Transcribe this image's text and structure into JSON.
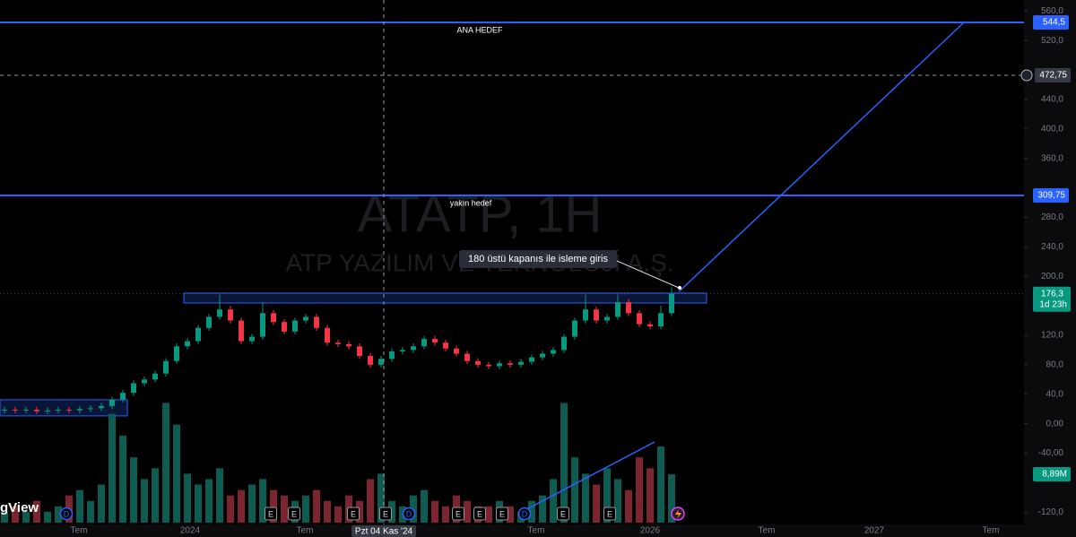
{
  "chart_data": {
    "type": "candlestick",
    "title": "ATATP, 1H",
    "subtitle": "ATP YAZILIM VE TEKNOLOJİ A.Ş.",
    "open": [
      18,
      19,
      18,
      19,
      17,
      18,
      19,
      18,
      20,
      21,
      24,
      33,
      42,
      55,
      60,
      68,
      85,
      105,
      112,
      130,
      145,
      155,
      140,
      112,
      118,
      150,
      138,
      125,
      140,
      145,
      130,
      110,
      108,
      105,
      92,
      80,
      88,
      98,
      100,
      105,
      115,
      110,
      102,
      95,
      85,
      80,
      78,
      82,
      80,
      84,
      90,
      95,
      100,
      118,
      140,
      155,
      140,
      145,
      165,
      150,
      135,
      132,
      150
    ],
    "high": [
      23,
      23,
      23,
      23,
      22,
      23,
      23,
      24,
      25,
      28,
      37,
      46,
      59,
      64,
      72,
      89,
      109,
      116,
      134,
      149,
      175,
      160,
      144,
      122,
      165,
      154,
      142,
      144,
      149,
      149,
      134,
      114,
      112,
      109,
      96,
      92,
      102,
      104,
      109,
      119,
      119,
      114,
      106,
      99,
      89,
      84,
      86,
      86,
      88,
      94,
      99,
      104,
      122,
      144,
      175,
      159,
      149,
      175,
      169,
      154,
      139,
      160,
      185
    ],
    "low": [
      14,
      14,
      14,
      13,
      13,
      14,
      14,
      14,
      16,
      17,
      20,
      29,
      38,
      51,
      56,
      64,
      81,
      101,
      108,
      126,
      141,
      136,
      108,
      108,
      114,
      134,
      121,
      121,
      136,
      126,
      106,
      104,
      101,
      88,
      76,
      76,
      84,
      94,
      96,
      101,
      106,
      98,
      91,
      81,
      76,
      74,
      74,
      76,
      76,
      80,
      86,
      91,
      96,
      114,
      136,
      136,
      136,
      141,
      146,
      131,
      128,
      128,
      146
    ],
    "close": [
      19,
      18,
      19,
      17,
      18,
      19,
      18,
      20,
      21,
      24,
      33,
      42,
      55,
      60,
      68,
      85,
      105,
      112,
      130,
      145,
      155,
      140,
      112,
      118,
      150,
      138,
      125,
      140,
      145,
      130,
      110,
      108,
      105,
      92,
      80,
      88,
      98,
      100,
      105,
      115,
      110,
      102,
      95,
      85,
      80,
      78,
      82,
      80,
      84,
      90,
      95,
      100,
      118,
      140,
      155,
      140,
      145,
      165,
      150,
      135,
      132,
      150,
      176.3
    ],
    "volume": [
      2,
      3,
      2,
      4,
      2,
      3,
      5,
      6,
      4,
      7,
      20,
      16,
      12,
      8,
      10,
      22,
      18,
      9,
      7,
      8,
      10,
      5,
      6,
      7,
      8,
      6,
      5,
      4,
      5,
      6,
      4,
      3,
      5,
      4,
      8,
      9,
      4,
      3,
      5,
      6,
      4,
      3,
      5,
      4,
      3,
      3,
      4,
      3,
      2,
      4,
      5,
      8,
      22,
      12,
      9,
      7,
      10,
      8,
      6,
      12,
      10,
      14,
      8.89
    ],
    "ylim": [
      -153.7,
      574.9
    ],
    "yticks": [
      {
        "value": 560,
        "label": "560,0"
      },
      {
        "value": 520,
        "label": "520,0"
      },
      {
        "value": 440,
        "label": "440,0"
      },
      {
        "value": 400,
        "label": "400,0"
      },
      {
        "value": 360,
        "label": "360,0"
      },
      {
        "value": 280,
        "label": "280,0"
      },
      {
        "value": 240,
        "label": "240,0"
      },
      {
        "value": 200,
        "label": "200,0"
      },
      {
        "value": 120,
        "label": "120,0"
      },
      {
        "value": 80,
        "label": "80,0"
      },
      {
        "value": 40,
        "label": "40,0"
      },
      {
        "value": 0,
        "label": "0,00"
      },
      {
        "value": -40,
        "label": "-40,00"
      },
      {
        "value": -120,
        "label": "-120,0"
      }
    ],
    "time_labels": [
      "Tem",
      "2024",
      "Tem",
      "Tem",
      "2026",
      "Tem",
      "2027",
      "Tem"
    ],
    "colors": {
      "up": "#089981",
      "down": "#f23645",
      "up_volume": "#0e5b52",
      "down_volume": "#7c2430",
      "line": "#2962ff"
    },
    "levels": [
      {
        "value": 544.5,
        "label": "544,5",
        "name": "ANA HEDEF"
      },
      {
        "value": 309.75,
        "label": "309,75",
        "name": "yakın hedef"
      }
    ],
    "crosshair": {
      "value": 472.75,
      "label": "472,75",
      "time": "Pzt 04 Kas '24"
    },
    "last": {
      "value": 176.3,
      "label": "176,3",
      "countdown": "1d 23h"
    },
    "volume_label": {
      "value": 8.89,
      "label": "8,89M"
    },
    "zones": [
      {
        "low": 163.8,
        "high": 177.2
      },
      {
        "low": 10.6,
        "high": 32.5
      }
    ],
    "target_line": [
      179,
      544.5
    ],
    "annotation": "180 üstü kapanıs ile isleme giris",
    "events": [
      "D",
      "E",
      "E",
      "E",
      "E",
      "D",
      "E",
      "E",
      "E",
      "D",
      "E",
      "E"
    ],
    "logo": "TradingView"
  }
}
